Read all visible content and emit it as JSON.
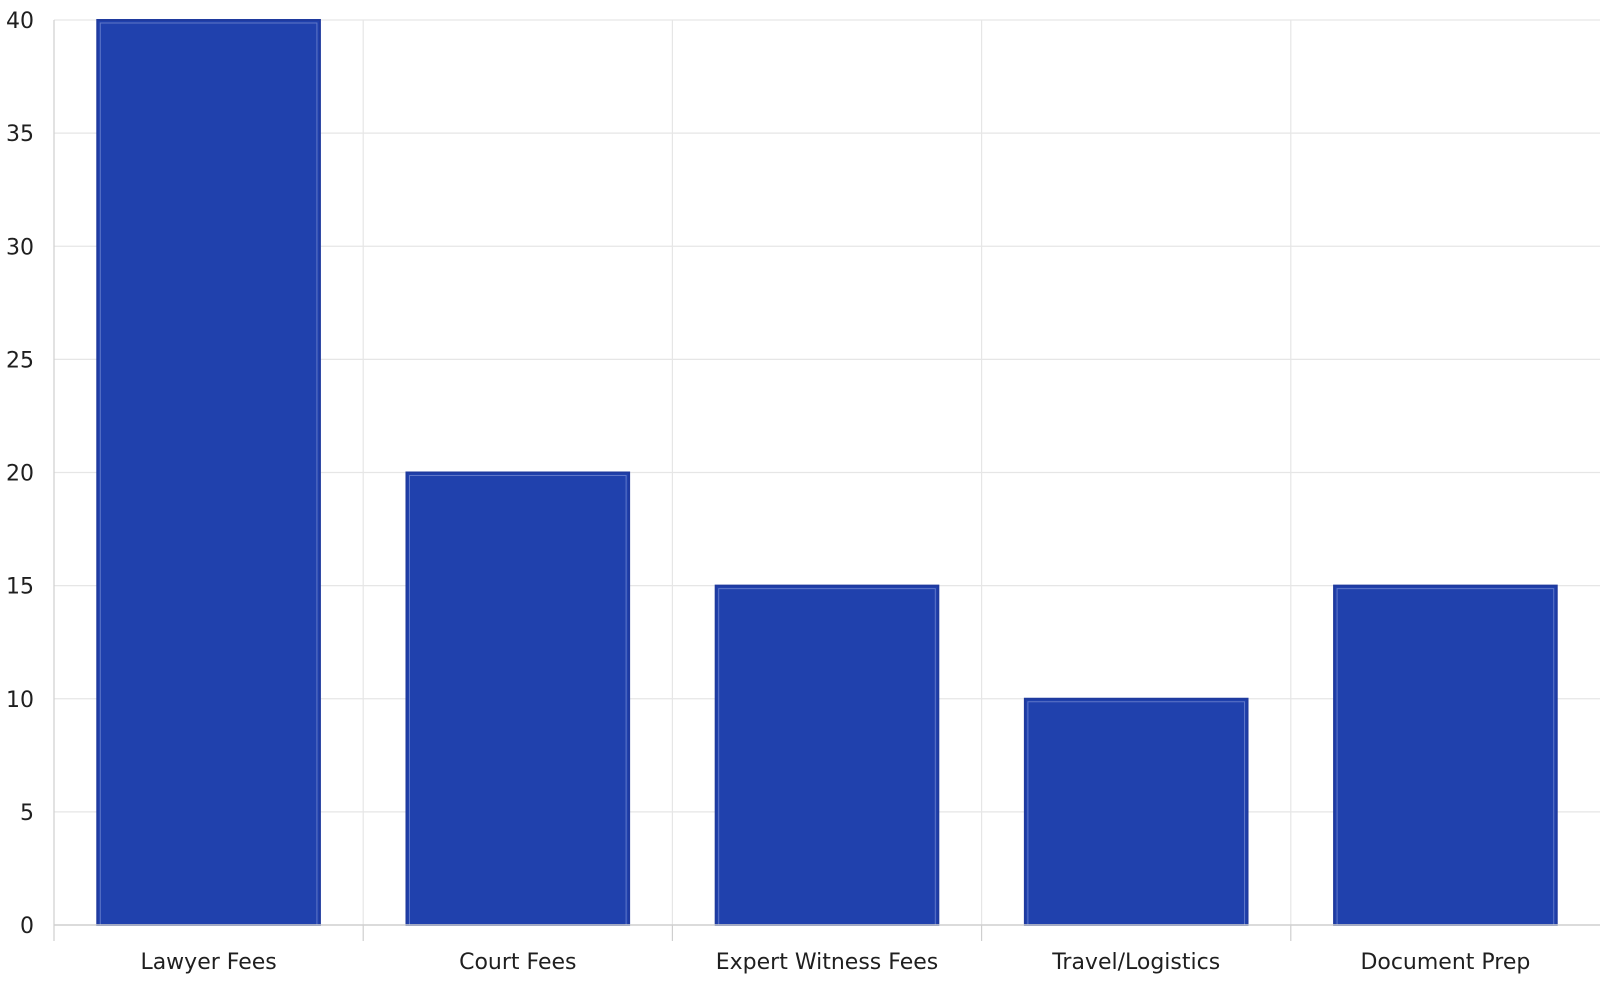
{
  "chart_data": {
    "type": "bar",
    "categories": [
      "Lawyer Fees",
      "Court Fees",
      "Expert Witness Fees",
      "Travel/Logistics",
      "Document Prep"
    ],
    "values": [
      40,
      20,
      15,
      10,
      15
    ],
    "ylim": [
      0,
      40
    ],
    "y_ticks": [
      0,
      5,
      10,
      15,
      20,
      25,
      30,
      35,
      40
    ],
    "y_tick_labels": [
      "0",
      "5",
      "10",
      "15",
      "20",
      "25",
      "30",
      "35",
      "40"
    ],
    "grid": true,
    "title": "",
    "xlabel": "",
    "ylabel": "",
    "colors": {
      "bar_fill": "#2041ad",
      "bar_edge": "#1f3a9e",
      "bar_inner_edge": "#5f77c8",
      "grid": "#e6e6e6",
      "axis": "#cfcfcf",
      "text": "#1f1f1f"
    }
  }
}
